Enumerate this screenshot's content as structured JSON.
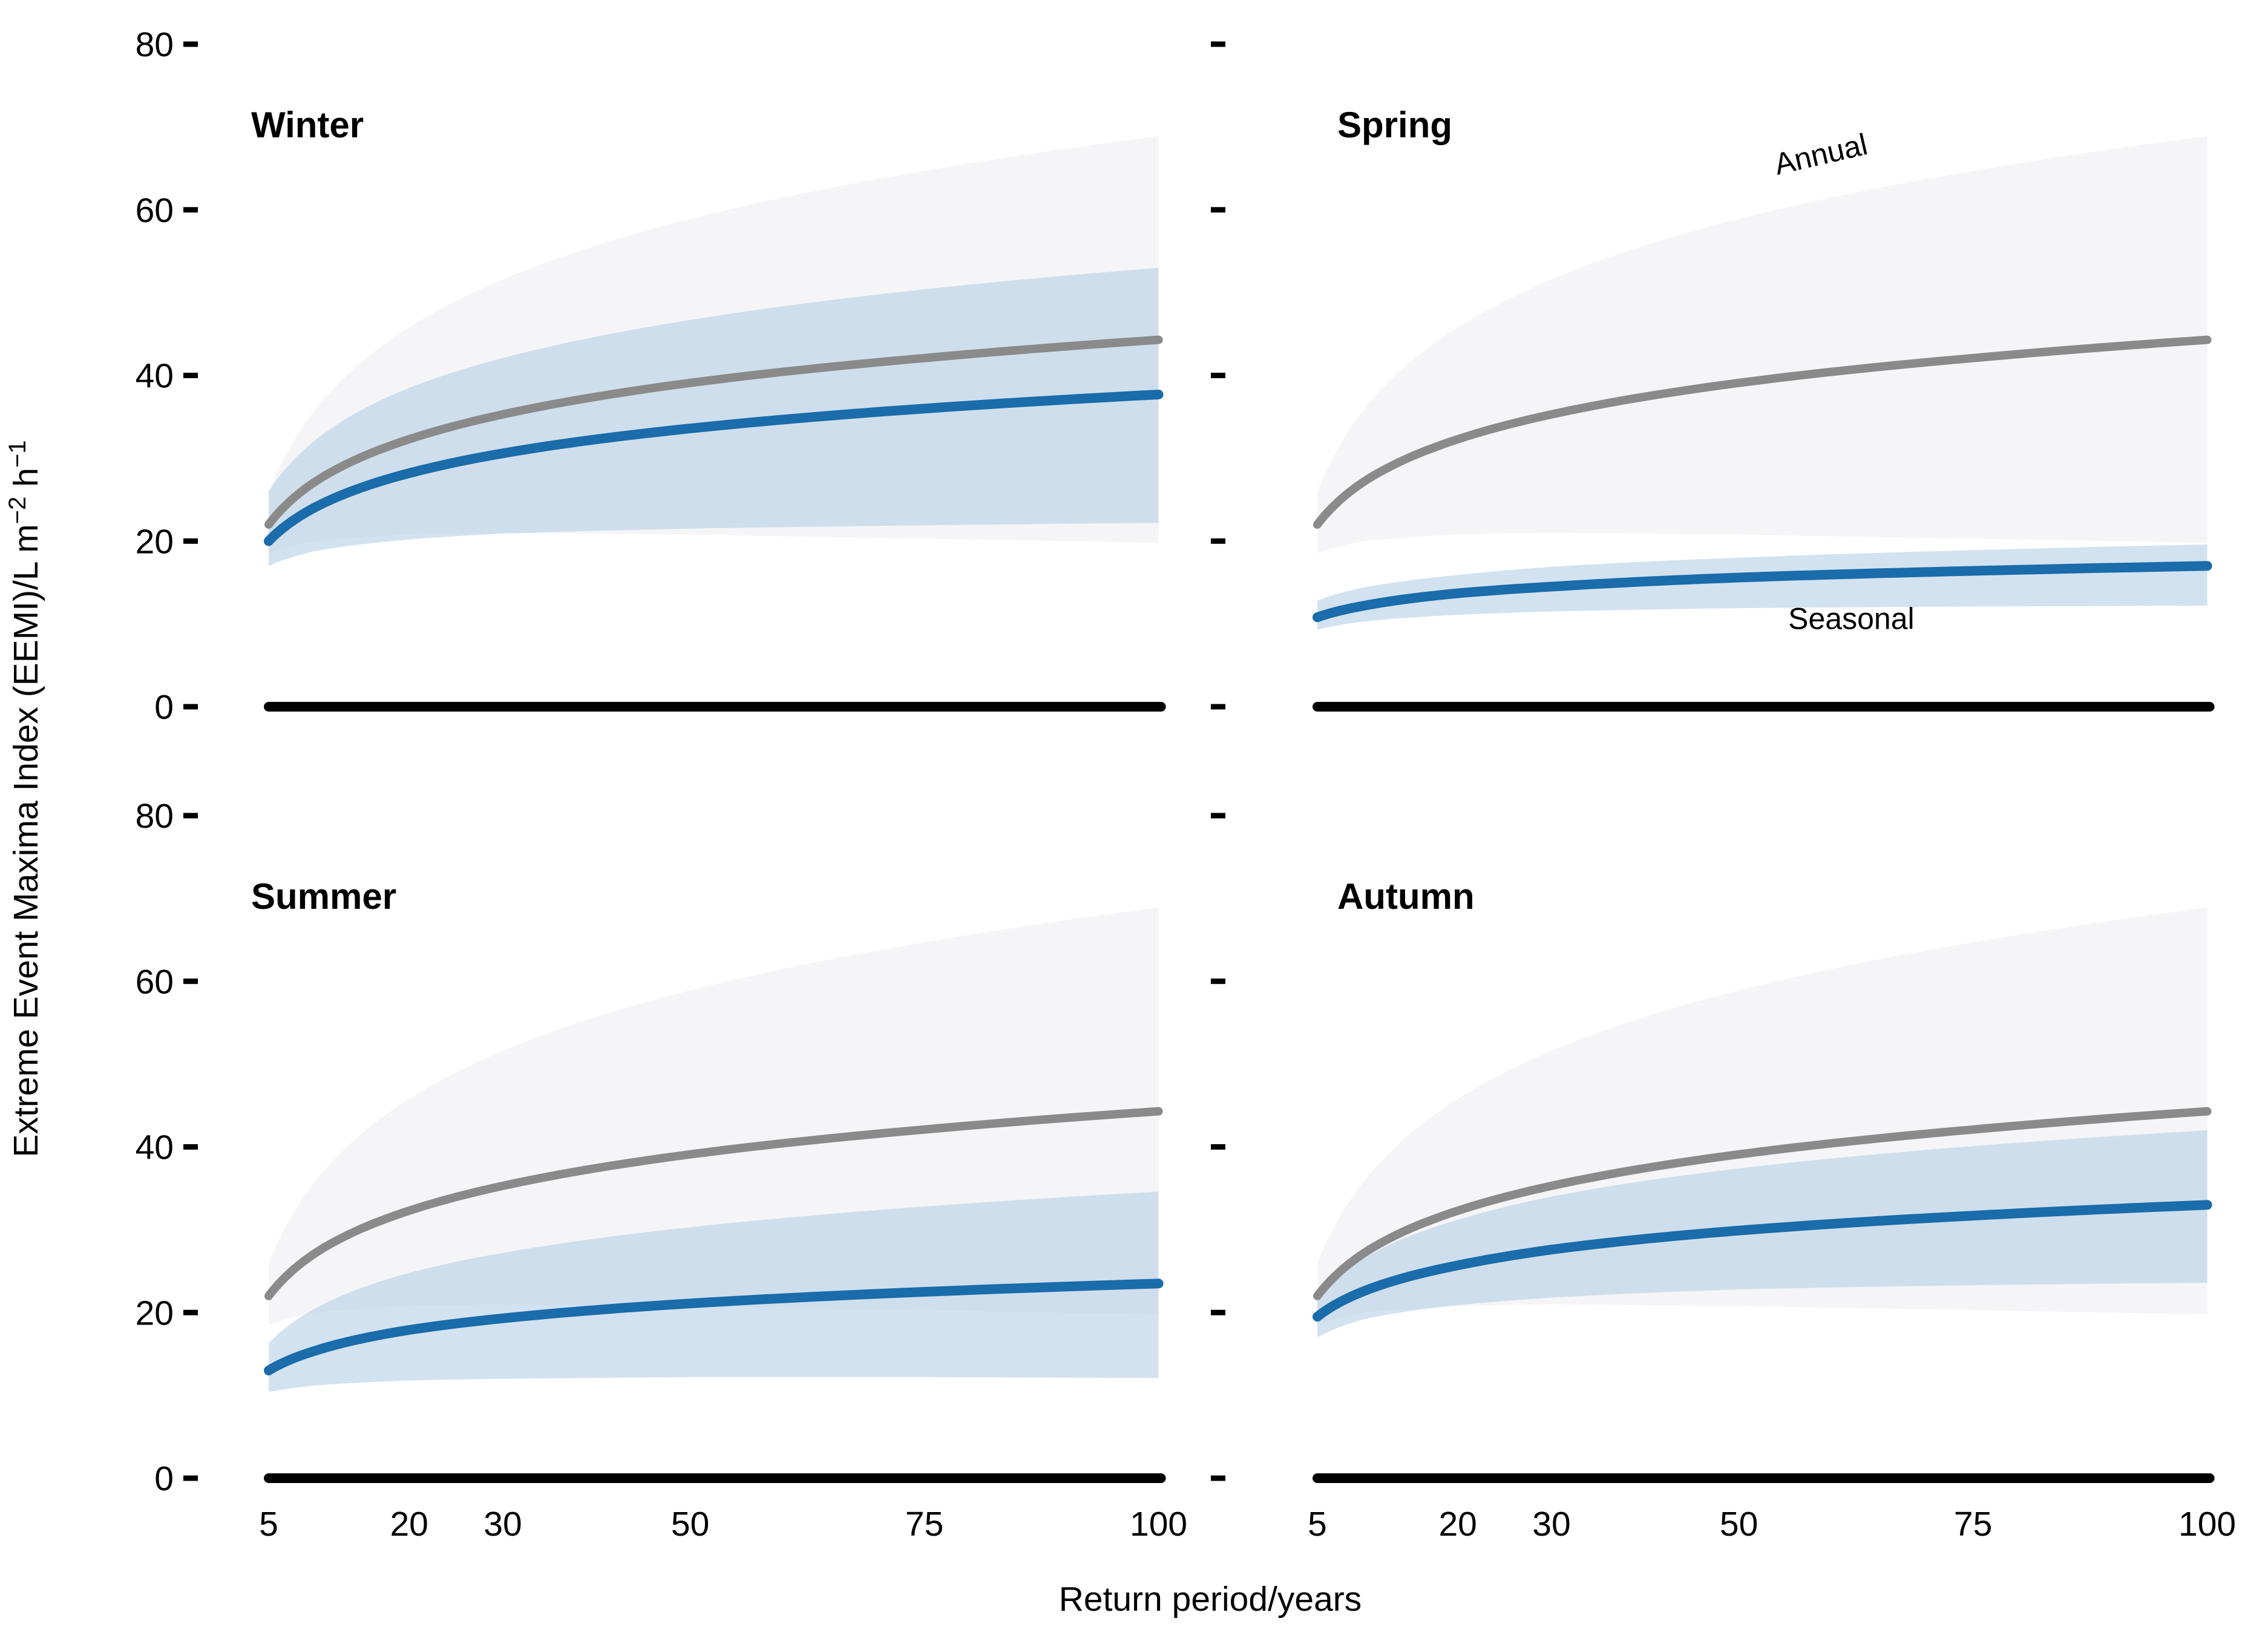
{
  "figure": {
    "background": "#ffffff",
    "x_axis_title": "Return period/years",
    "y_axis_title_segments": [
      {
        "t": "Extreme Event Maxima Index (EEMI)/L m"
      },
      {
        "t": "−2",
        "sup": true
      },
      {
        "t": " h"
      },
      {
        "t": "−1",
        "sup": true
      }
    ],
    "colors": {
      "seasonal_line": "#1a6caa",
      "annual_line": "#8a8a8a",
      "seasonal_band": "#aecbe4",
      "annual_band": "#f5f5f7",
      "axis": "#000000"
    },
    "annotations": {
      "annual": "Annual",
      "seasonal": "Seasonal"
    }
  },
  "chart_data": [
    {
      "type": "line",
      "title": "Winter",
      "row": 0,
      "col": 0,
      "x": [
        5,
        10,
        20,
        30,
        50,
        75,
        100
      ],
      "xlim": [
        5,
        100
      ],
      "ylim": [
        0,
        80
      ],
      "xticks": [
        5,
        20,
        30,
        50,
        75,
        100
      ],
      "yticks": [
        0,
        20,
        40,
        60,
        80
      ],
      "xlabel": "Return period/years",
      "ylabel": "Extreme Event Maxima Index (EEMI)/L m-2 h-1",
      "grid": false,
      "legend": "labels drawn inside Spring panel",
      "series": [
        {
          "name": "Annual",
          "color": "#8a8a8a",
          "band_color": "#f5f5f7",
          "values": [
            22.0,
            27.2,
            32.3,
            35.3,
            39.1,
            42.1,
            44.3
          ],
          "band_upper": [
            26.0,
            35.9,
            45.8,
            51.6,
            58.9,
            64.7,
            68.9
          ],
          "band_lower": [
            18.5,
            20.0,
            20.8,
            21.0,
            20.8,
            20.3,
            19.8
          ]
        },
        {
          "name": "Seasonal",
          "color": "#1a6caa",
          "band_color": "#aecbe4",
          "values": [
            20.0,
            24.1,
            28.2,
            30.6,
            33.6,
            36.0,
            37.7
          ],
          "band_upper": [
            26.0,
            32.2,
            38.5,
            42.1,
            46.7,
            50.4,
            53.0
          ],
          "band_lower": [
            17.0,
            18.8,
            20.2,
            20.9,
            21.5,
            21.9,
            22.2
          ]
        }
      ]
    },
    {
      "type": "line",
      "title": "Spring",
      "row": 0,
      "col": 1,
      "x": [
        5,
        10,
        20,
        30,
        50,
        75,
        100
      ],
      "xlim": [
        5,
        100
      ],
      "ylim": [
        0,
        80
      ],
      "xticks": [
        5,
        20,
        30,
        50,
        75,
        100
      ],
      "yticks": [
        0,
        20,
        40,
        60,
        80
      ],
      "xlabel": "Return period/years",
      "ylabel": "Extreme Event Maxima Index (EEMI)/L m-2 h-1",
      "grid": false,
      "annotations": [
        {
          "text": "Annual",
          "x_year": 59,
          "value": 65.5,
          "rotation": -13
        },
        {
          "text": "Seasonal",
          "x_year": 62,
          "value": 9.4,
          "rotation": 0
        }
      ],
      "series": [
        {
          "name": "Annual",
          "color": "#8a8a8a",
          "band_color": "#f5f5f7",
          "values": [
            22.0,
            27.2,
            32.3,
            35.3,
            39.1,
            42.1,
            44.3
          ],
          "band_upper": [
            26.0,
            35.9,
            45.8,
            51.6,
            58.9,
            64.7,
            68.9
          ],
          "band_lower": [
            18.5,
            20.0,
            20.8,
            21.0,
            20.8,
            20.3,
            19.8
          ]
        },
        {
          "name": "Seasonal",
          "color": "#1a6caa",
          "band_color": "#aecbe4",
          "values": [
            10.8,
            12.2,
            13.7,
            14.5,
            15.6,
            16.4,
            17.0
          ],
          "band_upper": [
            12.8,
            14.4,
            15.9,
            16.9,
            18.0,
            18.9,
            19.6
          ],
          "band_lower": [
            9.3,
            10.3,
            11.1,
            11.5,
            11.9,
            12.1,
            12.2
          ]
        }
      ]
    },
    {
      "type": "line",
      "title": "Summer",
      "row": 1,
      "col": 0,
      "x": [
        5,
        10,
        20,
        30,
        50,
        75,
        100
      ],
      "xlim": [
        5,
        100
      ],
      "ylim": [
        0,
        80
      ],
      "xticks": [
        5,
        20,
        30,
        50,
        75,
        100
      ],
      "yticks": [
        0,
        20,
        40,
        60,
        80
      ],
      "xlabel": "Return period/years",
      "ylabel": "Extreme Event Maxima Index (EEMI)/L m-2 h-1",
      "grid": false,
      "series": [
        {
          "name": "Annual",
          "color": "#8a8a8a",
          "band_color": "#f5f5f7",
          "values": [
            22.0,
            27.2,
            32.3,
            35.3,
            39.1,
            42.1,
            44.3
          ],
          "band_upper": [
            26.0,
            35.9,
            45.8,
            51.6,
            58.9,
            64.7,
            68.9
          ],
          "band_lower": [
            18.5,
            20.0,
            20.8,
            21.0,
            20.8,
            20.3,
            19.8
          ]
        },
        {
          "name": "Seasonal",
          "color": "#1a6caa",
          "band_color": "#aecbe4",
          "values": [
            13.0,
            15.4,
            17.9,
            19.3,
            21.1,
            22.5,
            23.5
          ],
          "band_upper": [
            16.3,
            20.5,
            24.8,
            27.2,
            30.3,
            32.8,
            34.6
          ],
          "band_lower": [
            10.4,
            11.2,
            11.8,
            12.0,
            12.2,
            12.2,
            12.1
          ]
        }
      ]
    },
    {
      "type": "line",
      "title": "Autumn",
      "row": 1,
      "col": 1,
      "x": [
        5,
        10,
        20,
        30,
        50,
        75,
        100
      ],
      "xlim": [
        5,
        100
      ],
      "ylim": [
        0,
        80
      ],
      "xticks": [
        5,
        20,
        30,
        50,
        75,
        100
      ],
      "yticks": [
        0,
        20,
        40,
        60,
        80
      ],
      "xlabel": "Return period/years",
      "ylabel": "Extreme Event Maxima Index (EEMI)/L m-2 h-1",
      "grid": false,
      "series": [
        {
          "name": "Annual",
          "color": "#8a8a8a",
          "band_color": "#f5f5f7",
          "values": [
            22.0,
            27.2,
            32.3,
            35.3,
            39.1,
            42.1,
            44.3
          ],
          "band_upper": [
            26.0,
            35.9,
            45.8,
            51.6,
            58.9,
            64.7,
            68.9
          ],
          "band_lower": [
            18.5,
            20.0,
            20.8,
            21.0,
            20.8,
            20.3,
            19.8
          ]
        },
        {
          "name": "Seasonal",
          "color": "#1a6caa",
          "band_color": "#aecbe4",
          "values": [
            19.5,
            22.6,
            25.7,
            27.6,
            29.9,
            31.7,
            33.0
          ],
          "band_upper": [
            22.0,
            26.6,
            31.2,
            34.0,
            37.4,
            40.1,
            42.0
          ],
          "band_lower": [
            17.0,
            19.2,
            20.9,
            21.8,
            22.8,
            23.3,
            23.6
          ]
        }
      ]
    }
  ]
}
